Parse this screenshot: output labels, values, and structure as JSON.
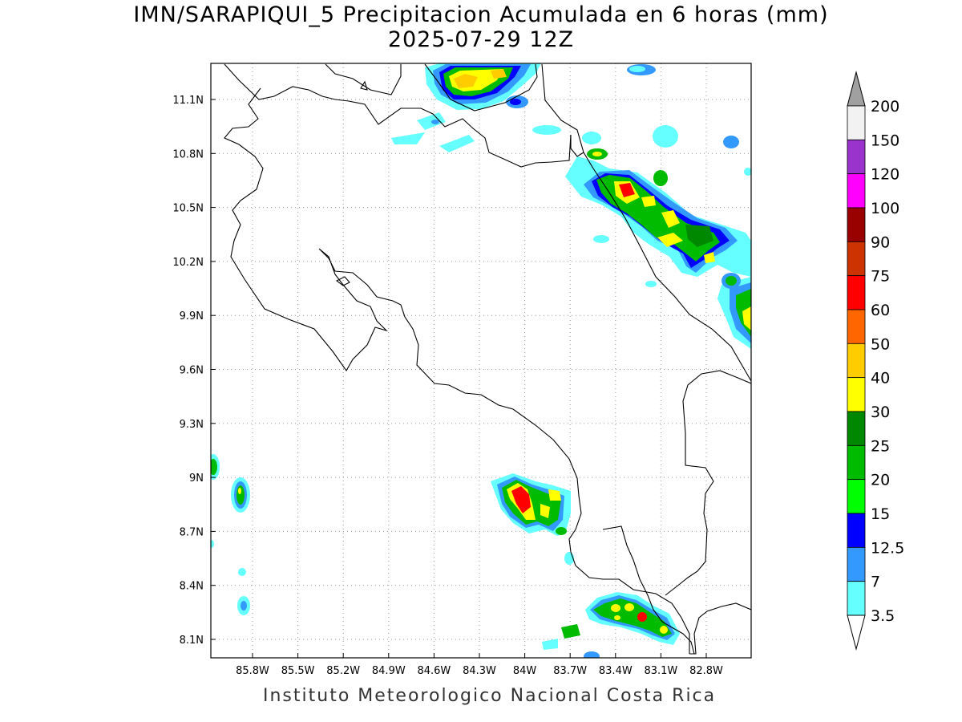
{
  "header": {
    "title_line1": "IMN/SARAPIQUI_5 Precipitacion Acumulada en 6 horas (mm)",
    "title_line2": "2025-07-29 12Z"
  },
  "footer": {
    "credit": "Instituto Meteorologico Nacional Costa Rica"
  },
  "map": {
    "lat_labels": [
      "11.1N",
      "10.8N",
      "10.5N",
      "10.2N",
      "9.9N",
      "9.6N",
      "9.3N",
      "9N",
      "8.7N",
      "8.4N",
      "8.1N"
    ],
    "lon_labels": [
      "85.8W",
      "85.5W",
      "85.2W",
      "84.9W",
      "84.6W",
      "84.3W",
      "84W",
      "83.7W",
      "83.4W",
      "83.1W",
      "82.8W"
    ]
  },
  "legend": {
    "labels": [
      "200",
      "150",
      "120",
      "100",
      "90",
      "75",
      "60",
      "50",
      "40",
      "30",
      "25",
      "20",
      "15",
      "12.5",
      "7",
      "3.5"
    ],
    "colors": [
      "#f2f2f2",
      "#9933cc",
      "#ff00ff",
      "#990000",
      "#cc3300",
      "#ff0000",
      "#ff6600",
      "#ffcc00",
      "#ffff00",
      "#008800",
      "#00bb00",
      "#00ff00",
      "#0000ff",
      "#3399ff",
      "#66ffff"
    ],
    "over_color": "#a0a0a0",
    "under_color": "#ffffff"
  }
}
